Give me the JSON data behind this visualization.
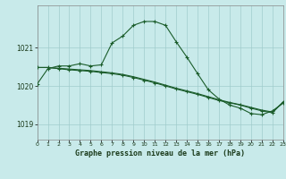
{
  "title": "Graphe pression niveau de la mer (hPa)",
  "bg_color": "#c8eaea",
  "grid_color": "#a0cccc",
  "line_color": "#1a5c2a",
  "xlim": [
    0,
    23
  ],
  "ylim": [
    1018.6,
    1022.1
  ],
  "yticks": [
    1019,
    1020,
    1021
  ],
  "xticks": [
    0,
    1,
    2,
    3,
    4,
    5,
    6,
    7,
    8,
    9,
    10,
    11,
    12,
    13,
    14,
    15,
    16,
    17,
    18,
    19,
    20,
    21,
    22,
    23
  ],
  "line1_x": [
    0,
    1,
    2,
    3,
    4,
    5,
    6,
    7,
    8,
    9,
    10,
    11,
    12,
    13,
    14,
    15,
    16,
    17,
    18,
    19,
    20,
    21,
    22,
    23
  ],
  "line1_y": [
    1020.05,
    1020.45,
    1020.52,
    1020.52,
    1020.58,
    1020.52,
    1020.55,
    1021.12,
    1021.3,
    1021.58,
    1021.68,
    1021.68,
    1021.58,
    1021.15,
    1020.75,
    1020.32,
    1019.9,
    1019.66,
    1019.5,
    1019.42,
    1019.28,
    1019.25,
    1019.35,
    1019.55
  ],
  "line2_x": [
    0,
    1,
    2,
    3,
    4,
    5,
    6,
    7,
    8,
    9,
    10,
    11,
    12,
    13,
    14,
    15,
    16,
    17,
    18,
    19,
    20,
    21,
    22,
    23
  ],
  "line2_y": [
    1020.48,
    1020.48,
    1020.45,
    1020.42,
    1020.4,
    1020.38,
    1020.35,
    1020.32,
    1020.28,
    1020.22,
    1020.15,
    1020.08,
    1020.0,
    1019.92,
    1019.85,
    1019.78,
    1019.7,
    1019.62,
    1019.56,
    1019.5,
    1019.42,
    1019.35,
    1019.3,
    1019.58
  ],
  "line3_x": [
    0,
    1,
    2,
    3,
    4,
    5,
    6,
    7,
    8,
    9,
    10,
    11,
    12,
    13,
    14,
    15,
    16,
    17,
    18,
    19,
    20,
    21,
    22,
    23
  ],
  "line3_y": [
    1020.48,
    1020.48,
    1020.46,
    1020.44,
    1020.42,
    1020.4,
    1020.37,
    1020.34,
    1020.3,
    1020.24,
    1020.17,
    1020.1,
    1020.02,
    1019.94,
    1019.87,
    1019.8,
    1019.72,
    1019.64,
    1019.57,
    1019.51,
    1019.44,
    1019.37,
    1019.32,
    1019.58
  ]
}
